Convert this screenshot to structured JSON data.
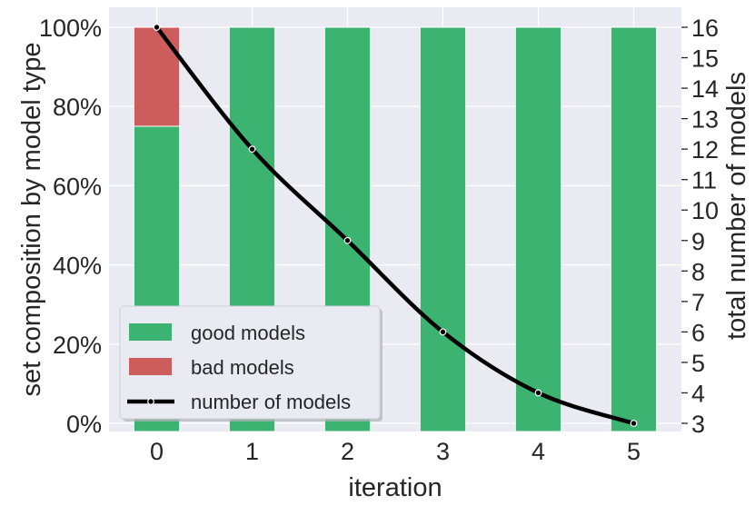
{
  "chart_data": {
    "type": "bar",
    "subtype": "stacked-percent-with-secondary-line",
    "categories": [
      "0",
      "1",
      "2",
      "3",
      "4",
      "5"
    ],
    "xlabel": "iteration",
    "ylabel": "set composition by model type",
    "y2label": "total number of models",
    "ylim": [
      0,
      100
    ],
    "y_ticks": [
      "0%",
      "20%",
      "40%",
      "60%",
      "80%",
      "100%"
    ],
    "y2lim": [
      2.3,
      16.3
    ],
    "y2_ticks": [
      "3",
      "4",
      "5",
      "6",
      "7",
      "8",
      "9",
      "10",
      "11",
      "12",
      "13",
      "14",
      "15",
      "16"
    ],
    "grid": true,
    "legend_position": "lower-left",
    "series": [
      {
        "name": "good models",
        "kind": "bar",
        "color": "#3cb371",
        "values": [
          75,
          100,
          100,
          100,
          100,
          100
        ]
      },
      {
        "name": "bad models",
        "kind": "bar",
        "color": "#cd5c5c",
        "values": [
          25,
          0,
          0,
          0,
          0,
          0
        ]
      },
      {
        "name": "number of models",
        "kind": "line",
        "axis": "right",
        "color": "#000000",
        "values": [
          16,
          12,
          9,
          6,
          4,
          3
        ]
      }
    ],
    "background": "#eaeaf2"
  }
}
